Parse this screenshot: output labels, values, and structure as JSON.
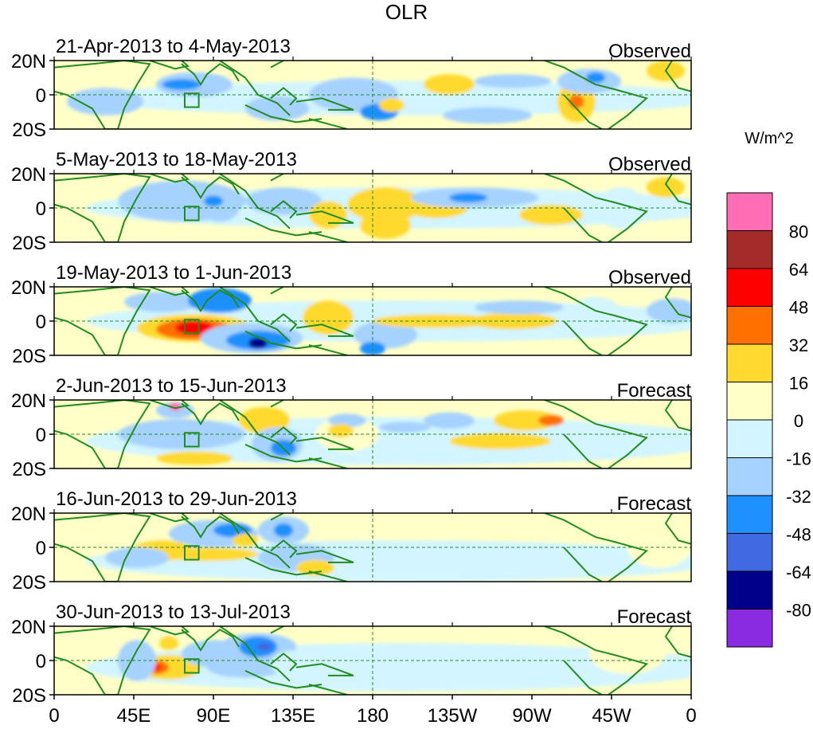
{
  "title": "OLR",
  "panels": [
    {
      "period": "21-Apr-2013 to 4-May-2013",
      "kind": "Observed"
    },
    {
      "period": "5-May-2013 to 18-May-2013",
      "kind": "Observed"
    },
    {
      "period": "19-May-2013 to 1-Jun-2013",
      "kind": "Observed"
    },
    {
      "period": "2-Jun-2013 to 15-Jun-2013",
      "kind": "Forecast"
    },
    {
      "period": "16-Jun-2013 to 29-Jun-2013",
      "kind": "Forecast"
    },
    {
      "period": "30-Jun-2013 to 13-Jul-2013",
      "kind": "Forecast"
    }
  ],
  "lat_ticks": [
    "20N",
    "0",
    "20S"
  ],
  "lon_ticks": [
    "0",
    "45E",
    "90E",
    "135E",
    "180",
    "135W",
    "90W",
    "45W",
    "0"
  ],
  "colorbar": {
    "unit": "W/m^2",
    "labels": [
      "80",
      "64",
      "48",
      "32",
      "16",
      "0",
      "-16",
      "-32",
      "-48",
      "-64",
      "-80"
    ],
    "colors": [
      "#ff6eb4",
      "#a52a2a",
      "#ff0000",
      "#ff7000",
      "#ffd92f",
      "#ffffc8",
      "#d2f5ff",
      "#a5d2ff",
      "#1e90ff",
      "#4169e1",
      "#00008b",
      "#8a2be2"
    ]
  },
  "colors": {
    "land_outline": "#228b22",
    "frame": "#000000",
    "dash": "#228b22"
  }
}
